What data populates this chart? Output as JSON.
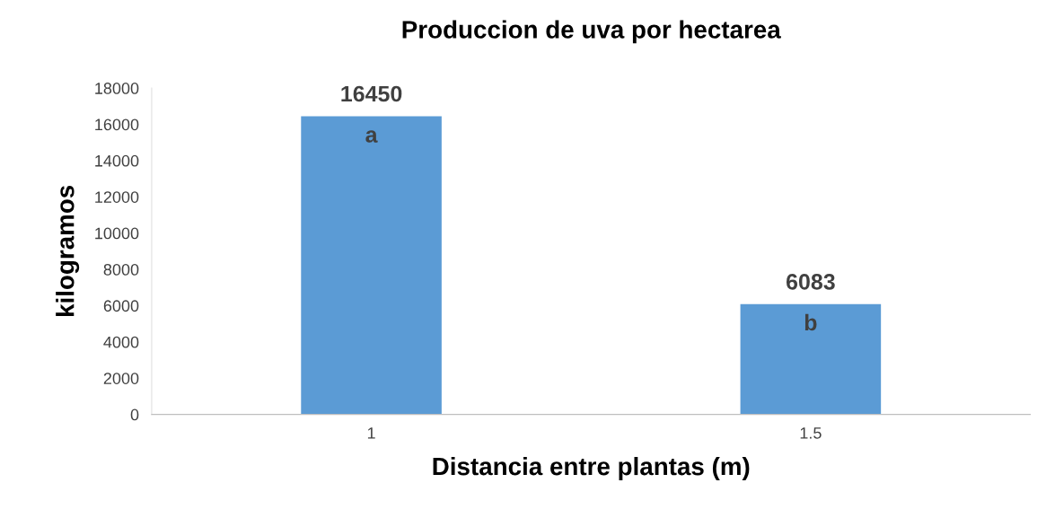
{
  "chart_data": {
    "type": "bar",
    "title": "Produccion de uva por hectarea",
    "xlabel": "Distancia entre plantas (m)",
    "ylabel": "kilogramos",
    "categories": [
      "1",
      "1.5"
    ],
    "values": [
      16450,
      6083
    ],
    "color": "#5b9bd5",
    "ylim": [
      0,
      18000
    ],
    "yticks": [
      0,
      2000,
      4000,
      6000,
      8000,
      10000,
      12000,
      14000,
      16000,
      18000
    ],
    "data_labels": true,
    "grid": false,
    "legend": false,
    "annotations": [
      {
        "text": "a",
        "x": "1",
        "y": 16450
      },
      {
        "text": "b",
        "x": "1.5",
        "y": 6083
      }
    ]
  }
}
